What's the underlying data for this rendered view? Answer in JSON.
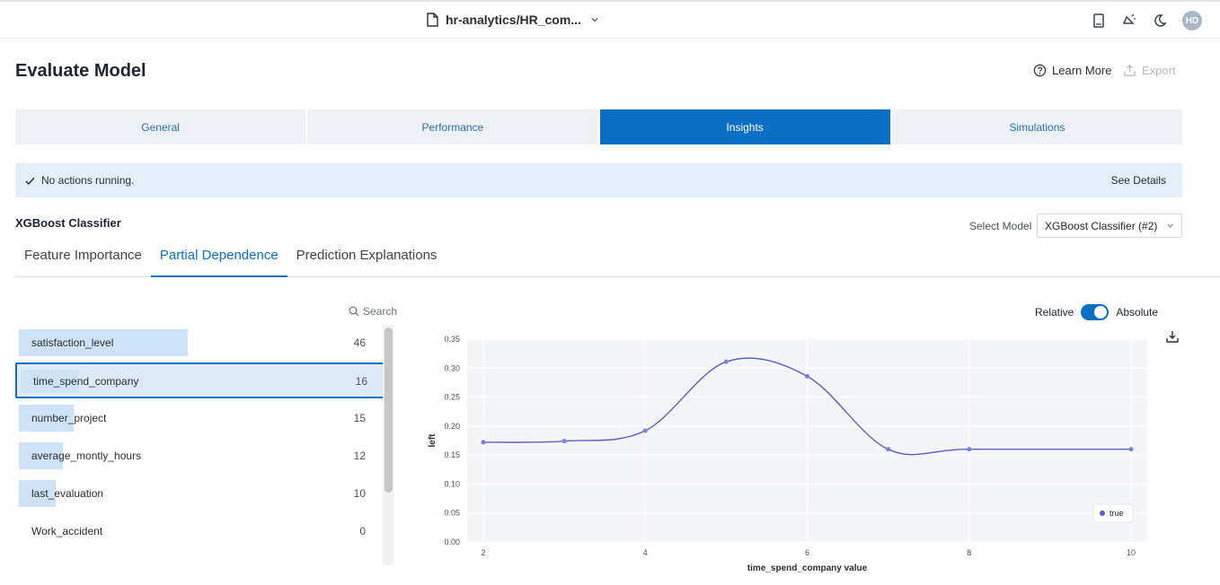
{
  "topbar": {
    "file_title": "hr-analytics/HR_com...",
    "avatar_initials": "HD",
    "icons": [
      "file-icon",
      "chevron-down-icon",
      "book-icon",
      "announcement-icon",
      "moon-icon"
    ]
  },
  "header": {
    "title": "Evaluate Model",
    "learn_more": "Learn More",
    "export": "Export"
  },
  "tabs": [
    {
      "label": "General",
      "active": false
    },
    {
      "label": "Performance",
      "active": false
    },
    {
      "label": "Insights",
      "active": true
    },
    {
      "label": "Simulations",
      "active": false
    }
  ],
  "status": {
    "message": "No actions running.",
    "details": "See Details"
  },
  "model": {
    "name": "XGBoost Classifier",
    "select_label": "Select Model",
    "selected": "XGBoost Classifier (#2)"
  },
  "subtabs": [
    {
      "label": "Feature Importance",
      "active": false
    },
    {
      "label": "Partial Dependence",
      "active": true
    },
    {
      "label": "Prediction Explanations",
      "active": false
    }
  ],
  "search": {
    "label": "Search"
  },
  "features": [
    {
      "name": "satisfaction_level",
      "value": 46,
      "selected": false
    },
    {
      "name": "time_spend_company",
      "value": 16,
      "selected": true
    },
    {
      "name": "number_project",
      "value": 15,
      "selected": false
    },
    {
      "name": "average_montly_hours",
      "value": 12,
      "selected": false
    },
    {
      "name": "last_evaluation",
      "value": 10,
      "selected": false
    },
    {
      "name": "Work_accident",
      "value": 0,
      "selected": false
    }
  ],
  "toggle": {
    "left_label": "Relative",
    "right_label": "Absolute",
    "state": "Absolute"
  },
  "colors": {
    "accent": "#0b6fc4",
    "line": "#5b5fc7",
    "plot_bg": "#f3f5f9",
    "bar": "#cfe2f6"
  },
  "chart_data": {
    "type": "line",
    "xlabel": "time_spend_company value",
    "ylabel": "left",
    "xlim": [
      2,
      10
    ],
    "ylim": [
      0,
      0.35
    ],
    "x_ticks": [
      2,
      4,
      6,
      8,
      10
    ],
    "y_ticks": [
      "0.00",
      "0.05",
      "0.10",
      "0.15",
      "0.20",
      "0.25",
      "0.30",
      "0.35"
    ],
    "legend_position": "bottom-right",
    "series": [
      {
        "name": "true",
        "x": [
          2,
          3,
          4,
          5,
          6,
          7,
          8,
          10
        ],
        "values": [
          0.172,
          0.174,
          0.192,
          0.311,
          0.286,
          0.16,
          0.16,
          0.16
        ]
      }
    ]
  }
}
